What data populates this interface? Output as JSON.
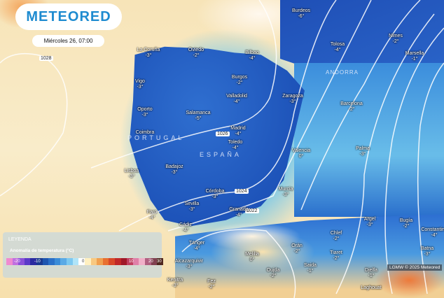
{
  "brand": "METEORED",
  "datetime": "Miércoles 26, 07:00",
  "isobars": [
    "1028",
    "1026",
    "1024",
    "1022"
  ],
  "countries": {
    "spain": "ESPAÑA",
    "portugal": "PORTUGAL",
    "andorra": "ANDORRA"
  },
  "cities": [
    {
      "name": "Burdeos",
      "temp": "-6°"
    },
    {
      "name": "Tolosa",
      "temp": "-4°"
    },
    {
      "name": "Nimes",
      "temp": "-2°"
    },
    {
      "name": "Marsella",
      "temp": "-1°"
    },
    {
      "name": "La Coruña",
      "temp": "-3°"
    },
    {
      "name": "Oviedo",
      "temp": "-2°"
    },
    {
      "name": "Bilbao",
      "temp": "-4°"
    },
    {
      "name": "Burgos",
      "temp": "-2°"
    },
    {
      "name": "Vigo",
      "temp": "-3°"
    },
    {
      "name": "Valladolid",
      "temp": "-4°"
    },
    {
      "name": "Zaragoza",
      "temp": "-3°"
    },
    {
      "name": "Barcelona",
      "temp": "-2°"
    },
    {
      "name": "Oporto",
      "temp": "-3°"
    },
    {
      "name": "Salamanca",
      "temp": "-5°"
    },
    {
      "name": "Coimbra",
      "temp": ""
    },
    {
      "name": "Madrid",
      "temp": "-4°"
    },
    {
      "name": "Toledo",
      "temp": "-4°"
    },
    {
      "name": "Lisboa",
      "temp": "-3°"
    },
    {
      "name": "Badajoz",
      "temp": "-3°"
    },
    {
      "name": "Valencia",
      "temp": "0°"
    },
    {
      "name": "Palma",
      "temp": "-3°"
    },
    {
      "name": "Córdoba",
      "temp": "-3°"
    },
    {
      "name": "Murcia",
      "temp": "-3°"
    },
    {
      "name": "Sevilla",
      "temp": "-3°"
    },
    {
      "name": "Granada",
      "temp": "-4°"
    },
    {
      "name": "Faro",
      "temp": "-4°"
    },
    {
      "name": "Cádiz",
      "temp": "-4°"
    },
    {
      "name": "Tánger",
      "temp": "-4°"
    },
    {
      "name": "Argel",
      "temp": "-3°"
    },
    {
      "name": "Bugía",
      "temp": "-2°"
    },
    {
      "name": "Constantina",
      "temp": "-4°"
    },
    {
      "name": "Chlef",
      "temp": "-2°"
    },
    {
      "name": "Orán",
      "temp": "-2°"
    },
    {
      "name": "Melilla",
      "temp": "0°"
    },
    {
      "name": "Tiaret",
      "temp": "-2°"
    },
    {
      "name": "Batna",
      "temp": "-3°"
    },
    {
      "name": "Alcazarquivir",
      "temp": "-3°"
    },
    {
      "name": "Saida",
      "temp": "-1°"
    },
    {
      "name": "Oujda",
      "temp": "-2°"
    },
    {
      "name": "Djelfa",
      "temp": "-1°"
    },
    {
      "name": "Kenitra",
      "temp": "-3°"
    },
    {
      "name": "Fez",
      "temp": "-2°"
    },
    {
      "name": "Laghouat",
      "temp": ""
    }
  ],
  "legend": {
    "title": "LEYENDA",
    "subtitle": "Anomalía de temperatura (°C)",
    "ticks": [
      "-20",
      "-10",
      "0",
      "10",
      "20",
      "30"
    ],
    "colors": [
      "#f08ad0",
      "#c070e0",
      "#8a50d8",
      "#5a3ac8",
      "#2a2aa0",
      "#1a3a90",
      "#1e56b0",
      "#2a70c8",
      "#3a8cd8",
      "#5aaae6",
      "#7cc8f0",
      "#b0e4f8",
      "#ffffff",
      "#fff0c0",
      "#f8c880",
      "#f0a050",
      "#e87030",
      "#d84828",
      "#c02828",
      "#a01828",
      "#c04060",
      "#e080a8",
      "#f0b0c8",
      "#b06080",
      "#804050",
      "#502820"
    ]
  },
  "credit": "LGMW © 2025 Meteored"
}
